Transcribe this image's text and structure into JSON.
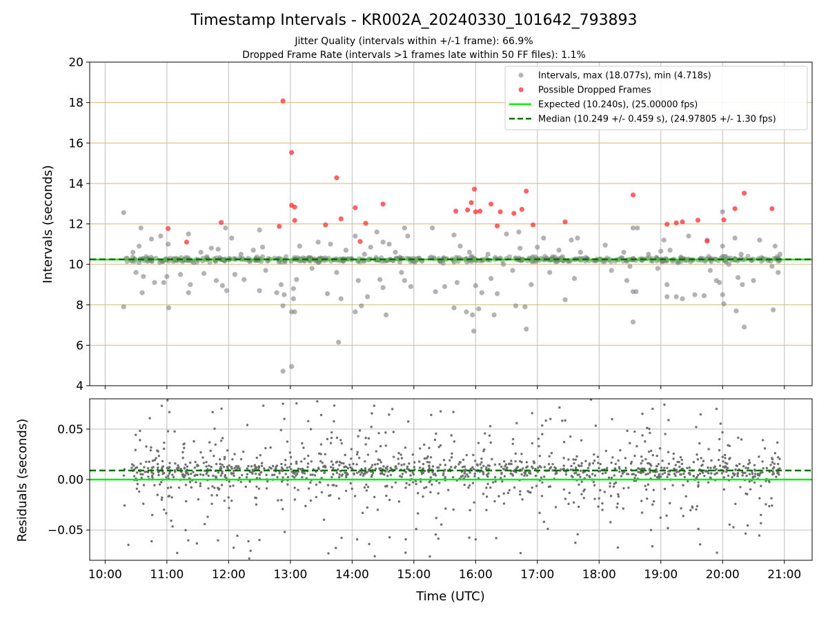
{
  "chart_data": [
    {
      "type": "scatter",
      "title": "Timestamp Intervals - KR002A_20240330_101642_793893",
      "subtitle_lines": [
        "Jitter Quality (intervals within +/-1 frame): 66.9%",
        "Dropped Frame Rate (intervals >1 frames late within 50 FF files): 1.1%"
      ],
      "xlabel": "",
      "ylabel": "Intervals (seconds)",
      "xlim": [
        9.75,
        21.45
      ],
      "ylim": [
        4,
        20
      ],
      "x_ticks": [
        10,
        11,
        12,
        13,
        14,
        15,
        16,
        17,
        18,
        19,
        20,
        21
      ],
      "x_tick_labels_visible": false,
      "y_ticks": [
        4,
        6,
        8,
        10,
        12,
        14,
        16,
        18,
        20
      ],
      "y_tick_labels": [
        "4",
        "6",
        "8",
        "10",
        "12",
        "14",
        "16",
        "18",
        "20"
      ],
      "grid": true,
      "legend_placement": "top-right",
      "legend": [
        {
          "label": "Intervals, max (18.077s), min (4.718s)",
          "marker": "circle",
          "color": "#808080"
        },
        {
          "label": "Possible Dropped Frames",
          "marker": "circle",
          "color": "#ff3030"
        },
        {
          "label": "Expected (10.240s), (25.00000 fps)",
          "marker": "line",
          "color": "#00ee00"
        },
        {
          "label": "Median (10.249 +/- 0.459 s), (24.97805 +/- 1.30 fps)",
          "marker": "dashed-line",
          "color": "#007000"
        }
      ],
      "reference_lines": {
        "expected": 10.24,
        "median": 10.249
      },
      "x_range_of_samples": [
        10.3,
        20.93
      ],
      "dense_band_y": 10.24,
      "series": [
        {
          "name": "Intervals, max (18.077s), min (4.718s)",
          "color": "#808080",
          "points": [
            [
              10.3,
              12.56
            ],
            [
              10.3,
              7.9
            ],
            [
              10.45,
              10.6
            ],
            [
              10.5,
              9.6
            ],
            [
              10.55,
              10.9
            ],
            [
              10.58,
              11.8
            ],
            [
              10.6,
              8.6
            ],
            [
              10.62,
              9.4
            ],
            [
              10.75,
              11.25
            ],
            [
              10.8,
              9.1
            ],
            [
              10.9,
              11.4
            ],
            [
              10.95,
              9.1
            ],
            [
              11.0,
              9.4
            ],
            [
              11.02,
              11.0
            ],
            [
              11.03,
              7.85
            ],
            [
              11.15,
              10.3
            ],
            [
              11.22,
              9.5
            ],
            [
              11.35,
              11.5
            ],
            [
              11.35,
              8.6
            ],
            [
              11.38,
              9.0
            ],
            [
              11.55,
              10.6
            ],
            [
              11.6,
              9.55
            ],
            [
              11.72,
              10.8
            ],
            [
              11.8,
              9.2
            ],
            [
              11.83,
              10.75
            ],
            [
              11.9,
              8.95
            ],
            [
              11.95,
              11.8
            ],
            [
              11.97,
              8.7
            ],
            [
              12.05,
              11.3
            ],
            [
              12.1,
              9.5
            ],
            [
              12.2,
              10.5
            ],
            [
              12.25,
              9.25
            ],
            [
              12.4,
              10.7
            ],
            [
              12.5,
              11.7
            ],
            [
              12.5,
              8.7
            ],
            [
              12.55,
              10.85
            ],
            [
              12.6,
              9.7
            ],
            [
              12.78,
              8.6
            ],
            [
              12.85,
              9.0
            ],
            [
              12.88,
              7.95
            ],
            [
              12.9,
              8.5
            ],
            [
              12.88,
              4.72
            ],
            [
              13.02,
              4.95
            ],
            [
              13.02,
              7.65
            ],
            [
              13.07,
              7.65
            ],
            [
              13.05,
              8.8
            ],
            [
              13.05,
              8.3
            ],
            [
              13.1,
              9.25
            ],
            [
              13.15,
              10.9
            ],
            [
              13.35,
              9.8
            ],
            [
              13.45,
              11.1
            ],
            [
              13.6,
              8.55
            ],
            [
              13.65,
              11.0
            ],
            [
              13.75,
              9.6
            ],
            [
              13.78,
              6.15
            ],
            [
              13.82,
              8.3
            ],
            [
              13.9,
              10.7
            ],
            [
              14.05,
              11.4
            ],
            [
              14.05,
              7.65
            ],
            [
              14.1,
              9.2
            ],
            [
              14.15,
              7.95
            ],
            [
              14.2,
              10.5
            ],
            [
              14.25,
              8.4
            ],
            [
              14.3,
              10.85
            ],
            [
              14.4,
              11.6
            ],
            [
              14.45,
              9.25
            ],
            [
              14.5,
              8.85
            ],
            [
              14.5,
              11.1
            ],
            [
              14.55,
              7.5
            ],
            [
              14.6,
              11.0
            ],
            [
              14.7,
              10.6
            ],
            [
              14.8,
              9.6
            ],
            [
              14.85,
              11.8
            ],
            [
              14.85,
              9.2
            ],
            [
              14.9,
              11.4
            ],
            [
              14.95,
              8.9
            ],
            [
              15.3,
              11.8
            ],
            [
              15.35,
              8.65
            ],
            [
              15.5,
              8.9
            ],
            [
              15.65,
              11.45
            ],
            [
              15.65,
              7.85
            ],
            [
              15.7,
              9.1
            ],
            [
              15.75,
              10.9
            ],
            [
              15.85,
              7.65
            ],
            [
              15.9,
              10.6
            ],
            [
              15.95,
              7.5
            ],
            [
              15.97,
              6.7
            ],
            [
              16.0,
              8.95
            ],
            [
              16.05,
              7.8
            ],
            [
              16.1,
              8.6
            ],
            [
              16.2,
              10.5
            ],
            [
              16.25,
              9.3
            ],
            [
              16.3,
              7.5
            ],
            [
              16.35,
              8.55
            ],
            [
              16.45,
              10.0
            ],
            [
              16.5,
              11.5
            ],
            [
              16.6,
              9.7
            ],
            [
              16.65,
              7.95
            ],
            [
              16.7,
              11.6
            ],
            [
              16.72,
              10.8
            ],
            [
              16.8,
              7.9
            ],
            [
              16.82,
              6.8
            ],
            [
              16.9,
              9.0
            ],
            [
              17.0,
              10.85
            ],
            [
              17.1,
              11.3
            ],
            [
              17.2,
              9.6
            ],
            [
              17.35,
              10.7
            ],
            [
              17.45,
              8.25
            ],
            [
              17.55,
              11.2
            ],
            [
              17.6,
              9.3
            ],
            [
              17.65,
              11.3
            ],
            [
              17.7,
              10.6
            ],
            [
              18.1,
              10.95
            ],
            [
              18.2,
              9.7
            ],
            [
              18.4,
              10.6
            ],
            [
              18.45,
              9.2
            ],
            [
              18.5,
              9.9
            ],
            [
              18.55,
              11.8
            ],
            [
              18.55,
              8.65
            ],
            [
              18.55,
              7.15
            ],
            [
              18.6,
              8.65
            ],
            [
              18.62,
              11.8
            ],
            [
              18.8,
              10.5
            ],
            [
              18.95,
              9.8
            ],
            [
              19.0,
              10.65
            ],
            [
              19.05,
              11.2
            ],
            [
              19.1,
              8.4
            ],
            [
              19.1,
              9.0
            ],
            [
              19.15,
              10.7
            ],
            [
              19.25,
              8.4
            ],
            [
              19.35,
              8.3
            ],
            [
              19.45,
              11.4
            ],
            [
              19.55,
              8.5
            ],
            [
              19.65,
              10.3
            ],
            [
              19.7,
              8.45
            ],
            [
              19.75,
              11.2
            ],
            [
              19.8,
              9.7
            ],
            [
              19.9,
              9.2
            ],
            [
              19.95,
              9.1
            ],
            [
              20.0,
              12.6
            ],
            [
              20.0,
              10.9
            ],
            [
              20.0,
              8.5
            ],
            [
              20.02,
              8.05
            ],
            [
              20.1,
              10.0
            ],
            [
              20.2,
              11.3
            ],
            [
              20.22,
              7.7
            ],
            [
              20.25,
              9.35
            ],
            [
              20.3,
              10.5
            ],
            [
              20.32,
              9.0
            ],
            [
              20.35,
              6.9
            ],
            [
              20.5,
              9.2
            ],
            [
              20.6,
              11.2
            ],
            [
              20.65,
              10.3
            ],
            [
              20.8,
              9.9
            ],
            [
              20.82,
              7.75
            ],
            [
              20.85,
              10.9
            ],
            [
              20.9,
              9.6
            ],
            [
              20.93,
              10.5
            ]
          ]
        },
        {
          "name": "Possible Dropped Frames",
          "color": "#ff3030",
          "points": [
            [
              11.02,
              11.77
            ],
            [
              11.32,
              11.1
            ],
            [
              11.88,
              12.07
            ],
            [
              12.82,
              11.88
            ],
            [
              12.88,
              18.08
            ],
            [
              13.02,
              15.53
            ],
            [
              13.02,
              12.92
            ],
            [
              13.07,
              12.83
            ],
            [
              13.07,
              12.17
            ],
            [
              13.57,
              11.95
            ],
            [
              13.75,
              14.28
            ],
            [
              13.82,
              12.25
            ],
            [
              14.05,
              12.8
            ],
            [
              14.13,
              11.13
            ],
            [
              14.22,
              12.03
            ],
            [
              14.5,
              12.98
            ],
            [
              15.68,
              12.63
            ],
            [
              15.87,
              12.69
            ],
            [
              15.93,
              13.05
            ],
            [
              15.98,
              13.72
            ],
            [
              16.0,
              12.6
            ],
            [
              16.07,
              12.63
            ],
            [
              16.25,
              12.98
            ],
            [
              16.35,
              11.9
            ],
            [
              16.4,
              12.6
            ],
            [
              16.62,
              12.52
            ],
            [
              16.75,
              12.72
            ],
            [
              16.82,
              13.62
            ],
            [
              16.93,
              11.95
            ],
            [
              17.45,
              12.1
            ],
            [
              18.55,
              13.43
            ],
            [
              19.1,
              11.98
            ],
            [
              19.25,
              12.05
            ],
            [
              19.35,
              12.1
            ],
            [
              19.6,
              12.18
            ],
            [
              19.75,
              11.15
            ],
            [
              20.02,
              12.2
            ],
            [
              20.2,
              12.75
            ],
            [
              20.35,
              13.52
            ],
            [
              20.8,
              12.75
            ]
          ]
        }
      ]
    },
    {
      "type": "scatter",
      "title": "",
      "xlabel": "Time (UTC)",
      "ylabel": "Residuals (seconds)",
      "xlim": [
        9.75,
        21.45
      ],
      "ylim": [
        -0.08,
        0.08
      ],
      "x_ticks": [
        10,
        11,
        12,
        13,
        14,
        15,
        16,
        17,
        18,
        19,
        20,
        21
      ],
      "x_tick_labels": [
        "10:00",
        "11:00",
        "12:00",
        "13:00",
        "14:00",
        "15:00",
        "16:00",
        "17:00",
        "18:00",
        "19:00",
        "20:00",
        "21:00"
      ],
      "y_ticks": [
        -0.05,
        0.0,
        0.05
      ],
      "y_tick_labels": [
        "−0.05",
        "0.00",
        "0.05"
      ],
      "grid": true,
      "reference_lines": {
        "expected": 0.0,
        "median": 0.009
      },
      "x_range_of_samples": [
        10.3,
        20.93
      ],
      "series": [
        {
          "name": "",
          "color": "#6e6e6e",
          "random_scatter": {
            "n": 1400,
            "seed": 7,
            "center": 0.009,
            "spread": "dense near median, sparse tails to ±0.08"
          }
        }
      ]
    }
  ],
  "colors": {
    "grid": "#bdbdbd",
    "band_grid": "#d6b871",
    "expected": "#00ee00",
    "median": "#007000",
    "gray_point": "#808080",
    "red_point": "#ff3030"
  }
}
